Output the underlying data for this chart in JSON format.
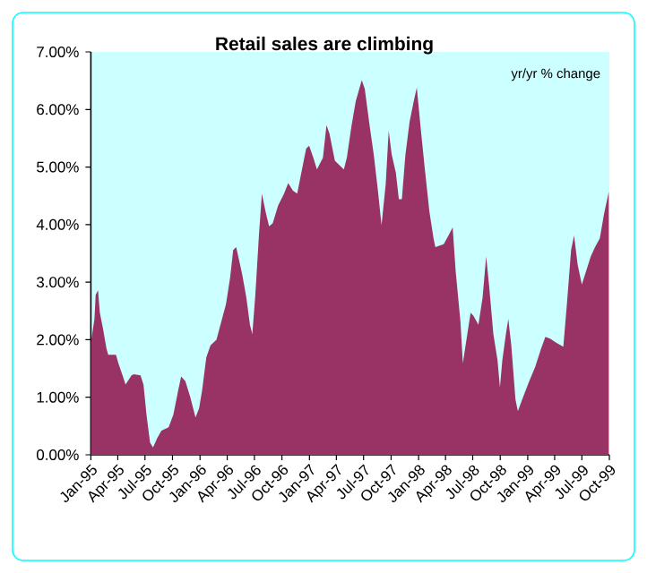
{
  "chart_data": {
    "type": "area",
    "title": "Retail sales are climbing",
    "annotations": [
      "yr/yr %  change"
    ],
    "xlim": [
      "1995-01-01",
      "1999-10-01"
    ],
    "xticks": [
      {
        "value": "1995-01-01",
        "label": "Jan-95"
      },
      {
        "value": "1995-04-01",
        "label": "Apr-95"
      },
      {
        "value": "1995-07-01",
        "label": "Jul-95"
      },
      {
        "value": "1995-10-01",
        "label": "Oct-95"
      },
      {
        "value": "1996-01-01",
        "label": "Jan-96"
      },
      {
        "value": "1996-04-01",
        "label": "Apr-96"
      },
      {
        "value": "1996-07-01",
        "label": "Jul-96"
      },
      {
        "value": "1996-10-01",
        "label": "Oct-96"
      },
      {
        "value": "1997-01-01",
        "label": "Jan-97"
      },
      {
        "value": "1997-04-01",
        "label": "Apr-97"
      },
      {
        "value": "1997-07-01",
        "label": "Jul-97"
      },
      {
        "value": "1997-10-01",
        "label": "Oct-97"
      },
      {
        "value": "1998-01-01",
        "label": "Jan-98"
      },
      {
        "value": "1998-04-01",
        "label": "Apr-98"
      },
      {
        "value": "1998-07-01",
        "label": "Jul-98"
      },
      {
        "value": "1998-10-01",
        "label": "Oct-98"
      },
      {
        "value": "1999-01-01",
        "label": "Jan-99"
      },
      {
        "value": "1999-04-01",
        "label": "Apr-99"
      },
      {
        "value": "1999-07-01",
        "label": "Jul-99"
      },
      {
        "value": "1999-10-01",
        "label": "Oct-99"
      }
    ],
    "ylim": [
      0,
      7
    ],
    "yticks": [
      {
        "value": 0,
        "label": "0.00%"
      },
      {
        "value": 1,
        "label": "1.00%"
      },
      {
        "value": 2,
        "label": "2.00%"
      },
      {
        "value": 3,
        "label": "3.00%"
      },
      {
        "value": 4,
        "label": "4.00%"
      },
      {
        "value": 5,
        "label": "5.00%"
      },
      {
        "value": 6,
        "label": "6.00%"
      },
      {
        "value": 7,
        "label": "7.00%"
      }
    ],
    "series": [
      {
        "color": "#993366",
        "x": [
          "1995-01-01",
          "1995-01-13",
          "1995-01-17",
          "1995-01-25",
          "1995-01-31",
          "1995-02-10",
          "1995-02-22",
          "1995-02-28",
          "1995-03-26",
          "1995-04-03",
          "1995-04-17",
          "1995-04-27",
          "1995-05-17",
          "1995-05-25",
          "1995-06-16",
          "1995-06-26",
          "1995-07-06",
          "1995-07-18",
          "1995-07-28",
          "1995-08-11",
          "1995-08-25",
          "1995-09-18",
          "1995-10-04",
          "1995-10-20",
          "1995-10-30",
          "1995-11-13",
          "1995-11-29",
          "1995-12-17",
          "1995-12-29",
          "1996-01-08",
          "1996-01-22",
          "1996-02-05",
          "1996-02-25",
          "1996-03-12",
          "1996-03-28",
          "1996-04-11",
          "1996-04-21",
          "1996-05-01",
          "1996-05-21",
          "1996-06-04",
          "1996-06-16",
          "1996-06-24",
          "1996-07-04",
          "1996-07-16",
          "1996-07-26",
          "1996-08-07",
          "1996-08-19",
          "1996-08-31",
          "1996-09-18",
          "1996-10-08",
          "1996-10-22",
          "1996-11-07",
          "1996-11-21",
          "1996-12-07",
          "1996-12-21",
          "1996-12-31",
          "1997-01-14",
          "1997-01-26",
          "1997-02-15",
          "1997-02-27",
          "1997-03-09",
          "1997-03-27",
          "1997-04-26",
          "1997-05-06",
          "1997-05-22",
          "1997-06-05",
          "1997-06-25",
          "1997-07-05",
          "1997-07-21",
          "1997-08-04",
          "1997-08-18",
          "1997-08-30",
          "1997-09-13",
          "1997-09-23",
          "1997-10-03",
          "1997-10-17",
          "1997-10-27",
          "1997-11-06",
          "1997-11-18",
          "1997-12-02",
          "1997-12-16",
          "1997-12-26",
          "1998-01-07",
          "1998-01-21",
          "1998-02-06",
          "1998-02-20",
          "1998-02-26",
          "1998-03-26",
          "1998-04-11",
          "1998-04-25",
          "1998-05-05",
          "1998-05-21",
          "1998-05-29",
          "1998-06-10",
          "1998-06-24",
          "1998-07-04",
          "1998-07-20",
          "1998-08-03",
          "1998-08-15",
          "1998-08-25",
          "1998-09-08",
          "1998-09-22",
          "1998-09-30",
          "1998-10-08",
          "1998-10-20",
          "1998-10-28",
          "1998-11-07",
          "1998-11-21",
          "1998-11-29",
          "1998-12-17",
          "1999-01-06",
          "1999-01-26",
          "1999-02-15",
          "1999-03-01",
          "1999-03-17",
          "1999-04-06",
          "1999-04-30",
          "1999-05-12",
          "1999-05-26",
          "1999-06-05",
          "1999-06-17",
          "1999-07-01",
          "1999-07-15",
          "1999-07-31",
          "1999-08-14",
          "1999-08-30",
          "1999-09-13",
          "1999-09-29"
        ],
        "values": [
          1.95,
          2.36,
          2.78,
          2.86,
          2.47,
          2.21,
          1.85,
          1.74,
          1.74,
          1.59,
          1.38,
          1.22,
          1.38,
          1.4,
          1.38,
          1.22,
          0.7,
          0.21,
          0.13,
          0.29,
          0.42,
          0.48,
          0.7,
          1.12,
          1.36,
          1.28,
          1.01,
          0.65,
          0.81,
          1.12,
          1.69,
          1.9,
          2.0,
          2.31,
          2.62,
          3.09,
          3.56,
          3.61,
          3.14,
          2.73,
          2.26,
          2.1,
          2.78,
          3.81,
          4.54,
          4.23,
          3.97,
          4.02,
          4.33,
          4.54,
          4.72,
          4.59,
          4.54,
          4.96,
          5.32,
          5.37,
          5.16,
          4.96,
          5.16,
          5.73,
          5.58,
          5.11,
          4.96,
          5.16,
          5.73,
          6.15,
          6.51,
          6.36,
          5.73,
          5.22,
          4.59,
          3.99,
          4.7,
          5.63,
          5.22,
          4.9,
          4.44,
          4.44,
          5.22,
          5.79,
          6.15,
          6.38,
          5.73,
          5.01,
          4.23,
          3.76,
          3.61,
          3.66,
          3.81,
          3.95,
          3.19,
          2.31,
          1.59,
          2.0,
          2.47,
          2.41,
          2.26,
          2.73,
          3.45,
          2.93,
          2.1,
          1.64,
          1.17,
          1.64,
          2.1,
          2.36,
          1.9,
          0.96,
          0.76,
          1.01,
          1.28,
          1.53,
          1.85,
          2.05,
          2.02,
          1.95,
          1.88,
          2.62,
          3.56,
          3.81,
          3.3,
          2.96,
          3.19,
          3.45,
          3.61,
          3.76,
          4.18,
          4.57
        ]
      }
    ]
  }
}
